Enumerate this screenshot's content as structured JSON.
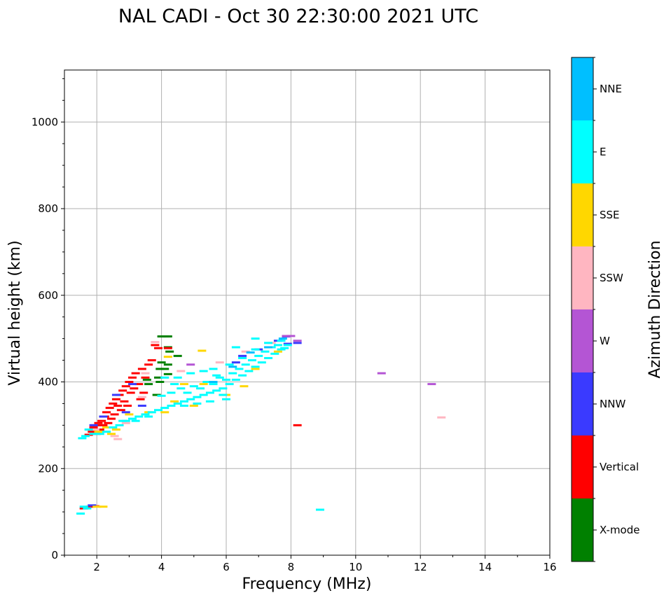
{
  "chart_data": {
    "type": "scatter",
    "title": "NAL CADI - Oct 30 22:30:00 2021 UTC",
    "xlabel": "Frequency (MHz)",
    "ylabel": "Virtual height (km)",
    "xlim": [
      1,
      16
    ],
    "ylim": [
      0,
      1120
    ],
    "xticks": [
      "2",
      "4",
      "6",
      "8",
      "10",
      "12",
      "14",
      "16"
    ],
    "yticks": [
      "0",
      "200",
      "400",
      "600",
      "800",
      "1000"
    ],
    "grid": true,
    "colorbar": {
      "label": "Azimuth Direction",
      "categories": [
        {
          "name": "X-mode",
          "color": "#008000"
        },
        {
          "name": "Vertical",
          "color": "#ff0000"
        },
        {
          "name": "NNW",
          "color": "#3a3aff"
        },
        {
          "name": "W",
          "color": "#b455d4"
        },
        {
          "name": "SSW",
          "color": "#ffb6c1"
        },
        {
          "name": "SSE",
          "color": "#ffd700"
        },
        {
          "name": "E",
          "color": "#00ffff"
        },
        {
          "name": "NNE",
          "color": "#00bfff"
        }
      ]
    },
    "series": [
      {
        "name": "X-mode",
        "points": [
          [
            4.0,
            505
          ],
          [
            4.1,
            505
          ],
          [
            4.2,
            505
          ],
          [
            4.2,
            480
          ],
          [
            4.25,
            470
          ],
          [
            4.0,
            445
          ],
          [
            4.2,
            440
          ],
          [
            4.1,
            430
          ],
          [
            3.95,
            430
          ],
          [
            4.2,
            418
          ],
          [
            3.9,
            410
          ],
          [
            3.95,
            400
          ],
          [
            4.5,
            460
          ],
          [
            3.55,
            405
          ],
          [
            3.6,
            395
          ],
          [
            3.85,
            370
          ]
        ]
      },
      {
        "name": "Vertical",
        "points": [
          [
            1.75,
            278
          ],
          [
            1.85,
            285
          ],
          [
            1.9,
            295
          ],
          [
            1.95,
            300
          ],
          [
            2.0,
            280
          ],
          [
            2.05,
            305
          ],
          [
            2.1,
            290
          ],
          [
            2.15,
            310
          ],
          [
            2.2,
            300
          ],
          [
            2.25,
            320
          ],
          [
            2.3,
            330
          ],
          [
            2.35,
            305
          ],
          [
            2.4,
            340
          ],
          [
            2.45,
            315
          ],
          [
            2.5,
            350
          ],
          [
            2.55,
            325
          ],
          [
            2.6,
            360
          ],
          [
            2.65,
            345
          ],
          [
            2.7,
            370
          ],
          [
            2.75,
            335
          ],
          [
            2.8,
            380
          ],
          [
            2.85,
            355
          ],
          [
            2.9,
            390
          ],
          [
            2.95,
            345
          ],
          [
            3.0,
            400
          ],
          [
            3.05,
            375
          ],
          [
            3.1,
            410
          ],
          [
            3.15,
            385
          ],
          [
            3.2,
            420
          ],
          [
            3.3,
            395
          ],
          [
            3.4,
            430
          ],
          [
            3.5,
            410
          ],
          [
            3.6,
            440
          ],
          [
            3.7,
            450
          ],
          [
            3.8,
            485
          ],
          [
            3.9,
            478
          ],
          [
            3.35,
            360
          ],
          [
            3.45,
            375
          ],
          [
            4.2,
            478
          ],
          [
            8.2,
            300
          ],
          [
            1.95,
            113
          ],
          [
            1.8,
            112
          ],
          [
            1.6,
            108
          ]
        ]
      },
      {
        "name": "NNW",
        "points": [
          [
            1.9,
            300
          ],
          [
            2.2,
            320
          ],
          [
            2.6,
            370
          ],
          [
            2.9,
            330
          ],
          [
            3.1,
            395
          ],
          [
            3.4,
            345
          ],
          [
            6.3,
            445
          ],
          [
            6.5,
            460
          ],
          [
            7.0,
            475
          ],
          [
            7.6,
            495
          ],
          [
            7.9,
            488
          ],
          [
            8.2,
            490
          ],
          [
            7.85,
            505
          ],
          [
            1.85,
            115
          ]
        ]
      },
      {
        "name": "W",
        "points": [
          [
            7.85,
            506
          ],
          [
            8.0,
            506
          ],
          [
            8.2,
            495
          ],
          [
            10.8,
            420
          ],
          [
            12.35,
            395
          ],
          [
            4.9,
            440
          ]
        ]
      },
      {
        "name": "SSW",
        "points": [
          [
            1.95,
            290
          ],
          [
            2.2,
            285
          ],
          [
            2.55,
            275
          ],
          [
            2.65,
            268
          ],
          [
            3.8,
            492
          ],
          [
            3.5,
            420
          ],
          [
            4.6,
            425
          ],
          [
            5.8,
            445
          ],
          [
            6.6,
            470
          ],
          [
            7.4,
            490
          ],
          [
            12.65,
            318
          ],
          [
            2.9,
            305
          ],
          [
            3.4,
            365
          ]
        ]
      },
      {
        "name": "SSE",
        "points": [
          [
            2.05,
            285
          ],
          [
            2.3,
            295
          ],
          [
            2.45,
            280
          ],
          [
            2.6,
            290
          ],
          [
            3.0,
            325
          ],
          [
            3.6,
            330
          ],
          [
            4.1,
            330
          ],
          [
            4.4,
            355
          ],
          [
            4.2,
            458
          ],
          [
            4.7,
            395
          ],
          [
            5.0,
            345
          ],
          [
            5.25,
            472
          ],
          [
            5.3,
            395
          ],
          [
            6.0,
            370
          ],
          [
            6.55,
            390
          ],
          [
            6.9,
            430
          ],
          [
            7.6,
            470
          ],
          [
            2.0,
            112
          ],
          [
            2.2,
            112
          ]
        ]
      },
      {
        "name": "E",
        "points": [
          [
            1.55,
            270
          ],
          [
            1.65,
            275
          ],
          [
            1.75,
            290
          ],
          [
            1.9,
            280
          ],
          [
            2.1,
            280
          ],
          [
            2.3,
            285
          ],
          [
            2.5,
            295
          ],
          [
            2.7,
            300
          ],
          [
            2.9,
            310
          ],
          [
            3.1,
            315
          ],
          [
            3.3,
            320
          ],
          [
            3.5,
            325
          ],
          [
            3.7,
            330
          ],
          [
            3.9,
            335
          ],
          [
            4.1,
            340
          ],
          [
            4.3,
            345
          ],
          [
            4.5,
            350
          ],
          [
            4.7,
            355
          ],
          [
            4.9,
            360
          ],
          [
            5.1,
            365
          ],
          [
            5.3,
            370
          ],
          [
            5.5,
            375
          ],
          [
            5.7,
            380
          ],
          [
            5.9,
            385
          ],
          [
            6.1,
            395
          ],
          [
            6.3,
            405
          ],
          [
            6.5,
            415
          ],
          [
            6.7,
            425
          ],
          [
            6.9,
            435
          ],
          [
            7.1,
            445
          ],
          [
            7.3,
            455
          ],
          [
            7.5,
            465
          ],
          [
            7.7,
            475
          ],
          [
            7.9,
            485
          ],
          [
            4.3,
            375
          ],
          [
            4.6,
            385
          ],
          [
            4.8,
            375
          ],
          [
            5.0,
            390
          ],
          [
            5.2,
            385
          ],
          [
            5.4,
            400
          ],
          [
            5.6,
            395
          ],
          [
            5.8,
            410
          ],
          [
            6.0,
            405
          ],
          [
            6.2,
            420
          ],
          [
            6.4,
            430
          ],
          [
            6.6,
            440
          ],
          [
            6.8,
            450
          ],
          [
            7.0,
            460
          ],
          [
            7.2,
            470
          ],
          [
            7.4,
            480
          ],
          [
            7.6,
            485
          ],
          [
            7.8,
            478
          ],
          [
            4.5,
            410
          ],
          [
            4.9,
            420
          ],
          [
            5.3,
            425
          ],
          [
            5.7,
            415
          ],
          [
            6.1,
            440
          ],
          [
            6.5,
            455
          ],
          [
            6.9,
            475
          ],
          [
            7.3,
            490
          ],
          [
            7.7,
            495
          ],
          [
            4.1,
            410
          ],
          [
            4.0,
            368
          ],
          [
            3.6,
            320
          ],
          [
            3.2,
            310
          ],
          [
            2.8,
            310
          ],
          [
            5.5,
            355
          ],
          [
            6.0,
            360
          ],
          [
            4.7,
            345
          ],
          [
            5.1,
            350
          ],
          [
            5.6,
            430
          ],
          [
            6.3,
            480
          ],
          [
            6.9,
            500
          ],
          [
            4.4,
            395
          ],
          [
            5.9,
            370
          ],
          [
            1.6,
            112
          ],
          [
            1.7,
            108
          ],
          [
            1.5,
            96
          ],
          [
            8.9,
            105
          ]
        ]
      },
      {
        "name": "NNE",
        "points": [
          [
            5.6,
            400
          ],
          [
            6.2,
            435
          ],
          [
            7.3,
            480
          ],
          [
            7.75,
            500
          ],
          [
            6.75,
            468
          ]
        ]
      }
    ]
  }
}
